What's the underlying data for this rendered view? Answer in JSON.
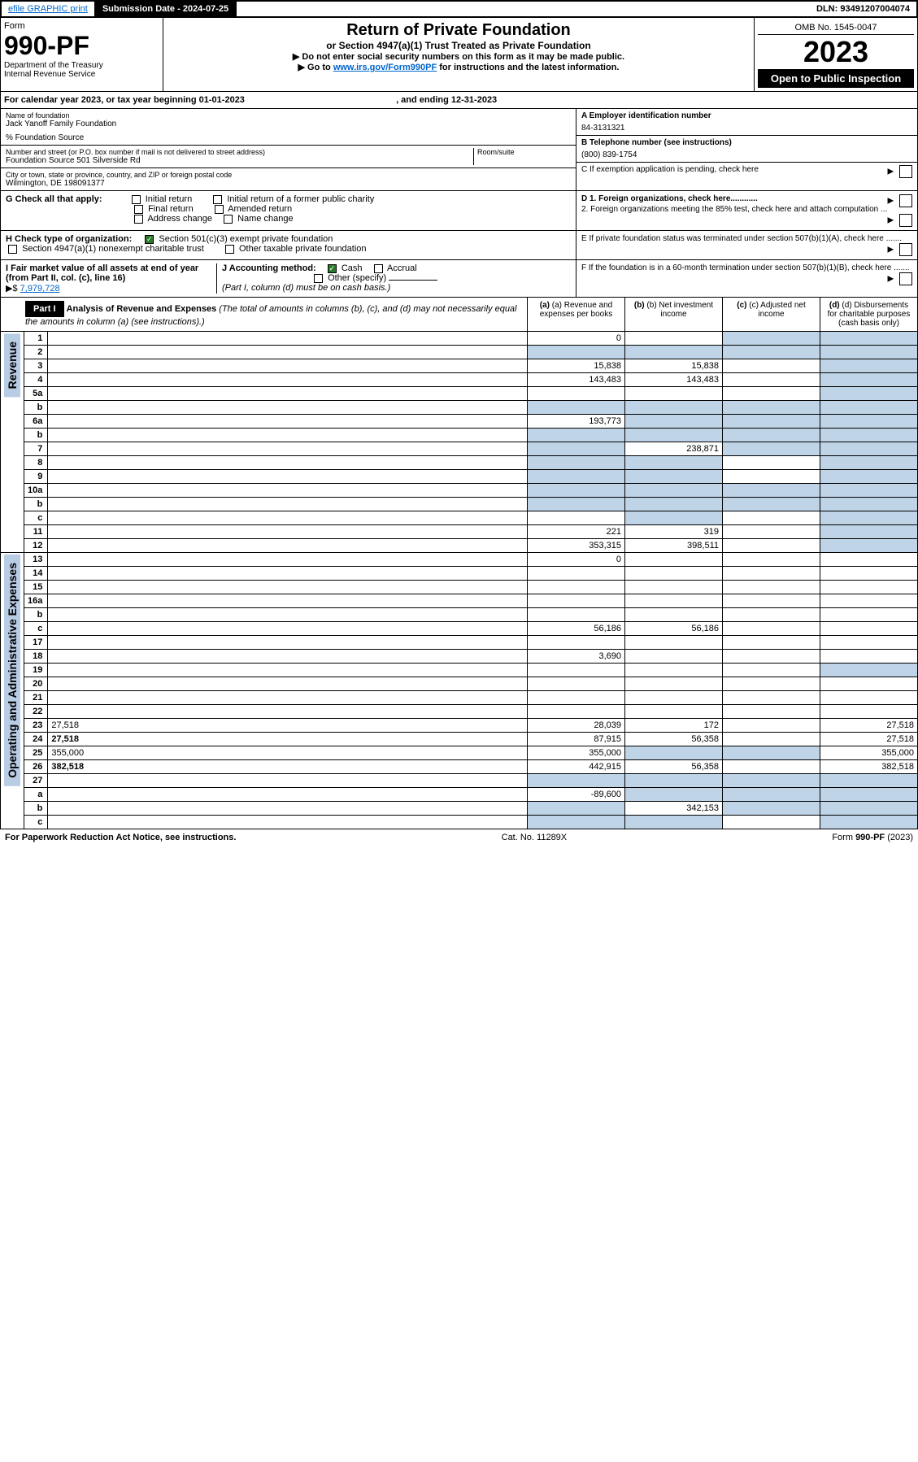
{
  "top_bar": {
    "efile": "efile GRAPHIC print",
    "submission_label": "Submission Date - 2024-07-25",
    "dln": "DLN: 93491207004074"
  },
  "header": {
    "form_word": "Form",
    "form_num": "990-PF",
    "dept": "Department of the Treasury",
    "irs": "Internal Revenue Service",
    "title": "Return of Private Foundation",
    "subtitle": "or Section 4947(a)(1) Trust Treated as Private Foundation",
    "instr1": "▶ Do not enter social security numbers on this form as it may be made public.",
    "instr2_pre": "▶ Go to ",
    "instr2_link": "www.irs.gov/Form990PF",
    "instr2_post": " for instructions and the latest information.",
    "omb": "OMB No. 1545-0047",
    "year": "2023",
    "open": "Open to Public Inspection"
  },
  "cal_year": {
    "pre": "For calendar year 2023, or tax year beginning ",
    "begin": "01-01-2023",
    "mid": " , and ending ",
    "end": "12-31-2023"
  },
  "id": {
    "name_label": "Name of foundation",
    "name": "Jack Yanoff Family Foundation",
    "care_of": "% Foundation Source",
    "addr_label": "Number and street (or P.O. box number if mail is not delivered to street address)",
    "addr": "Foundation Source 501 Silverside Rd",
    "room_label": "Room/suite",
    "city_label": "City or town, state or province, country, and ZIP or foreign postal code",
    "city": "Wilmington, DE  198091377",
    "ein_label": "A Employer identification number",
    "ein": "84-3131321",
    "phone_label": "B Telephone number (see instructions)",
    "phone": "(800) 839-1754",
    "c_label": "C If exemption application is pending, check here",
    "d1": "D 1. Foreign organizations, check here............",
    "d2": "2. Foreign organizations meeting the 85% test, check here and attach computation ...",
    "e": "E  If private foundation status was terminated under section 507(b)(1)(A), check here .......",
    "f": "F  If the foundation is in a 60-month termination under section 507(b)(1)(B), check here .......",
    "g_label": "G Check all that apply:",
    "g_opts": [
      "Initial return",
      "Initial return of a former public charity",
      "Final return",
      "Amended return",
      "Address change",
      "Name change"
    ],
    "h_label": "H Check type of organization:",
    "h_opts": [
      "Section 501(c)(3) exempt private foundation",
      "Section 4947(a)(1) nonexempt charitable trust",
      "Other taxable private foundation"
    ],
    "i_label": "I Fair market value of all assets at end of year (from Part II, col. (c), line 16)",
    "i_val": "7,979,728",
    "j_label": "J Accounting method:",
    "j_opts": [
      "Cash",
      "Accrual",
      "Other (specify)"
    ],
    "j_note": "(Part I, column (d) must be on cash basis.)"
  },
  "part1": {
    "label": "Part I",
    "title": "Analysis of Revenue and Expenses",
    "subtitle": "(The total of amounts in columns (b), (c), and (d) may not necessarily equal the amounts in column (a) (see instructions).)",
    "col_a": "(a) Revenue and expenses per books",
    "col_b": "(b) Net investment income",
    "col_c": "(c) Adjusted net income",
    "col_d": "(d) Disbursements for charitable purposes (cash basis only)",
    "side_rev": "Revenue",
    "side_exp": "Operating and Administrative Expenses"
  },
  "rows": [
    {
      "n": "1",
      "d": "",
      "a": "0",
      "b": "",
      "c": "",
      "shade_c": true,
      "shade_d": true
    },
    {
      "n": "2",
      "d": "",
      "a": "",
      "b": "",
      "c": "",
      "shade_a": true,
      "shade_b": true,
      "shade_c": true,
      "shade_d": true
    },
    {
      "n": "3",
      "d": "",
      "a": "15,838",
      "b": "15,838",
      "c": "",
      "shade_d": true
    },
    {
      "n": "4",
      "d": "",
      "a": "143,483",
      "b": "143,483",
      "c": "",
      "shade_d": true
    },
    {
      "n": "5a",
      "d": "",
      "a": "",
      "b": "",
      "c": "",
      "shade_d": true
    },
    {
      "n": "b",
      "d": "",
      "a": "",
      "b": "",
      "c": "",
      "shade_a": true,
      "shade_b": true,
      "shade_c": true,
      "shade_d": true
    },
    {
      "n": "6a",
      "d": "",
      "a": "193,773",
      "b": "",
      "c": "",
      "shade_b": true,
      "shade_c": true,
      "shade_d": true
    },
    {
      "n": "b",
      "d": "",
      "a": "",
      "b": "",
      "c": "",
      "shade_a": true,
      "shade_b": true,
      "shade_c": true,
      "shade_d": true
    },
    {
      "n": "7",
      "d": "",
      "a": "",
      "b": "238,871",
      "c": "",
      "shade_a": true,
      "shade_c": true,
      "shade_d": true
    },
    {
      "n": "8",
      "d": "",
      "a": "",
      "b": "",
      "c": "",
      "shade_a": true,
      "shade_b": true,
      "shade_d": true
    },
    {
      "n": "9",
      "d": "",
      "a": "",
      "b": "",
      "c": "",
      "shade_a": true,
      "shade_b": true,
      "shade_d": true
    },
    {
      "n": "10a",
      "d": "",
      "a": "",
      "b": "",
      "c": "",
      "shade_a": true,
      "shade_b": true,
      "shade_c": true,
      "shade_d": true
    },
    {
      "n": "b",
      "d": "",
      "a": "",
      "b": "",
      "c": "",
      "shade_a": true,
      "shade_b": true,
      "shade_c": true,
      "shade_d": true
    },
    {
      "n": "c",
      "d": "",
      "a": "",
      "b": "",
      "c": "",
      "shade_b": true,
      "shade_d": true
    },
    {
      "n": "11",
      "d": "",
      "a": "221",
      "b": "319",
      "c": "",
      "shade_d": true
    },
    {
      "n": "12",
      "d": "",
      "a": "353,315",
      "b": "398,511",
      "c": "",
      "bold": true,
      "shade_d": true
    },
    {
      "n": "13",
      "d": "",
      "a": "0",
      "b": "",
      "c": ""
    },
    {
      "n": "14",
      "d": "",
      "a": "",
      "b": "",
      "c": ""
    },
    {
      "n": "15",
      "d": "",
      "a": "",
      "b": "",
      "c": ""
    },
    {
      "n": "16a",
      "d": "",
      "a": "",
      "b": "",
      "c": ""
    },
    {
      "n": "b",
      "d": "",
      "a": "",
      "b": "",
      "c": ""
    },
    {
      "n": "c",
      "d": "",
      "a": "56,186",
      "b": "56,186",
      "c": ""
    },
    {
      "n": "17",
      "d": "",
      "a": "",
      "b": "",
      "c": ""
    },
    {
      "n": "18",
      "d": "",
      "a": "3,690",
      "b": "",
      "c": ""
    },
    {
      "n": "19",
      "d": "",
      "a": "",
      "b": "",
      "c": "",
      "shade_d": true
    },
    {
      "n": "20",
      "d": "",
      "a": "",
      "b": "",
      "c": ""
    },
    {
      "n": "21",
      "d": "",
      "a": "",
      "b": "",
      "c": ""
    },
    {
      "n": "22",
      "d": "",
      "a": "",
      "b": "",
      "c": ""
    },
    {
      "n": "23",
      "d": "27,518",
      "a": "28,039",
      "b": "172",
      "c": ""
    },
    {
      "n": "24",
      "d": "27,518",
      "a": "87,915",
      "b": "56,358",
      "c": "",
      "bold": true
    },
    {
      "n": "25",
      "d": "355,000",
      "a": "355,000",
      "b": "",
      "c": "",
      "shade_b": true,
      "shade_c": true
    },
    {
      "n": "26",
      "d": "382,518",
      "a": "442,915",
      "b": "56,358",
      "c": "",
      "bold": true
    },
    {
      "n": "27",
      "d": "",
      "a": "",
      "b": "",
      "c": "",
      "shade_a": true,
      "shade_b": true,
      "shade_c": true,
      "shade_d": true
    },
    {
      "n": "a",
      "d": "",
      "a": "-89,600",
      "b": "",
      "c": "",
      "bold": true,
      "shade_b": true,
      "shade_c": true,
      "shade_d": true
    },
    {
      "n": "b",
      "d": "",
      "a": "",
      "b": "342,153",
      "c": "",
      "bold": true,
      "shade_a": true,
      "shade_c": true,
      "shade_d": true
    },
    {
      "n": "c",
      "d": "",
      "a": "",
      "b": "",
      "c": "",
      "bold": true,
      "shade_a": true,
      "shade_b": true,
      "shade_d": true
    }
  ],
  "footer": {
    "left": "For Paperwork Reduction Act Notice, see instructions.",
    "center": "Cat. No. 11289X",
    "right": "Form 990-PF (2023)"
  }
}
